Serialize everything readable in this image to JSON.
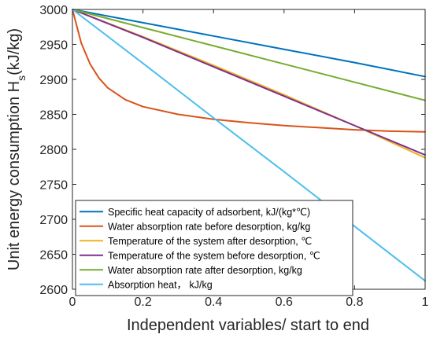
{
  "chart_data": {
    "type": "line",
    "xlabel": "Independent variables/ start to end",
    "ylabel_main": "Unit energy consumption H",
    "ylabel_sub": "s",
    "ylabel_unit": "(kJ/kg)",
    "xlim": [
      0,
      1
    ],
    "ylim": [
      2600,
      3000
    ],
    "x_ticks": [
      0,
      0.2,
      0.4,
      0.6,
      0.8,
      1
    ],
    "x_tick_labels": [
      "0",
      "0.2",
      "0.4",
      "0.6",
      "0.8",
      "1"
    ],
    "y_ticks": [
      2600,
      2650,
      2700,
      2750,
      2800,
      2850,
      2900,
      2950,
      3000
    ],
    "y_tick_labels": [
      "2600",
      "2650",
      "2700",
      "2750",
      "2800",
      "2850",
      "2900",
      "2950",
      "3000"
    ],
    "grid": false,
    "legend_position": "bottom-left",
    "series": [
      {
        "name": "Specific heat capacity of adsorbent, kJ/(kg*℃)",
        "color": "#0072BD",
        "x": [
          0,
          0.2,
          0.4,
          0.6,
          0.8,
          1
        ],
        "values": [
          3000,
          2981,
          2962,
          2943,
          2924,
          2904
        ]
      },
      {
        "name": "Water absorption rate before desorption, kg/kg",
        "color": "#D95319",
        "x": [
          0,
          0.025,
          0.05,
          0.075,
          0.1,
          0.15,
          0.2,
          0.3,
          0.4,
          0.5,
          0.6,
          0.7,
          0.8,
          0.9,
          1
        ],
        "values": [
          3000,
          2952,
          2922,
          2902,
          2888,
          2871,
          2861,
          2850,
          2843,
          2838,
          2834,
          2831,
          2828,
          2826,
          2825
        ]
      },
      {
        "name": "Temperature of the system after desorption, ℃",
        "color": "#EDB120",
        "x": [
          0,
          0.2,
          0.4,
          0.6,
          0.8,
          1
        ],
        "values": [
          3000,
          2961,
          2920,
          2878,
          2834,
          2788
        ]
      },
      {
        "name": "Temperature of the system before desorption, ℃",
        "color": "#7E2F8E",
        "x": [
          0,
          0.2,
          0.4,
          0.6,
          0.8,
          1
        ],
        "values": [
          3000,
          2960,
          2918,
          2876,
          2834,
          2792
        ]
      },
      {
        "name": "Water absorption rate after desorption, kg/kg",
        "color": "#77AC30",
        "x": [
          0,
          0.2,
          0.4,
          0.6,
          0.8,
          1
        ],
        "values": [
          3000,
          2974,
          2948,
          2922,
          2896,
          2870
        ]
      },
      {
        "name": "Absorption heat， kJ/kg",
        "color": "#4DBEEE",
        "x": [
          0,
          0.2,
          0.4,
          0.6,
          0.8,
          1
        ],
        "values": [
          3000,
          2923,
          2845,
          2768,
          2690,
          2612
        ]
      }
    ]
  }
}
